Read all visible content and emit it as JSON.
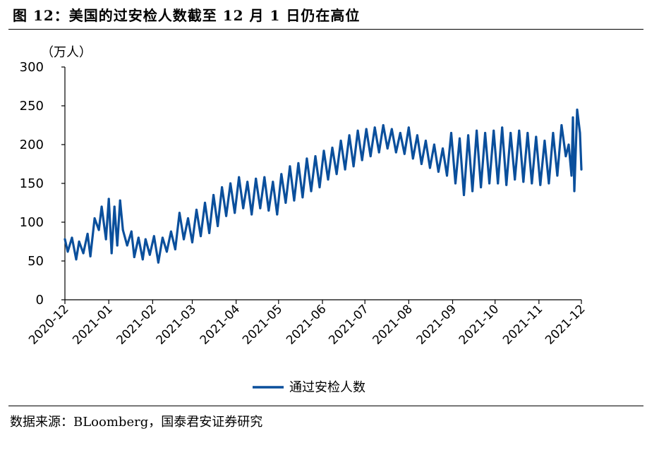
{
  "header": {
    "title": "图 12：美国的过安检人数截至 12 月 1 日仍在高位"
  },
  "footer": {
    "source": "数据来源：BLoomberg，国泰君安证券研究"
  },
  "colors": {
    "series": "#0a4f9c",
    "axis": "#000000"
  },
  "chart_data": {
    "type": "line",
    "title": "",
    "ylabel": "（万人）",
    "xlabel": "",
    "ylim": [
      0,
      300
    ],
    "yticks": [
      0,
      50,
      100,
      150,
      200,
      250,
      300
    ],
    "xlim": [
      "2020-12-01",
      "2021-12-01"
    ],
    "xticks": [
      "2020-12",
      "2021-01",
      "2021-02",
      "2021-03",
      "2021-04",
      "2021-05",
      "2021-06",
      "2021-07",
      "2021-08",
      "2021-09",
      "2021-10",
      "2021-11",
      "2021-12"
    ],
    "grid": false,
    "legend": "bottom-center",
    "series": [
      {
        "name": "通过安检人数",
        "x": [
          "2020-12-01",
          "2020-12-03",
          "2020-12-06",
          "2020-12-09",
          "2020-12-11",
          "2020-12-14",
          "2020-12-17",
          "2020-12-19",
          "2020-12-22",
          "2020-12-25",
          "2020-12-27",
          "2020-12-30",
          "2021-01-01",
          "2021-01-03",
          "2021-01-05",
          "2021-01-07",
          "2021-01-09",
          "2021-01-11",
          "2021-01-14",
          "2021-01-17",
          "2021-01-19",
          "2021-01-22",
          "2021-01-25",
          "2021-01-27",
          "2021-01-30",
          "2021-02-02",
          "2021-02-05",
          "2021-02-08",
          "2021-02-11",
          "2021-02-14",
          "2021-02-17",
          "2021-02-20",
          "2021-02-23",
          "2021-02-26",
          "2021-03-01",
          "2021-03-04",
          "2021-03-07",
          "2021-03-10",
          "2021-03-13",
          "2021-03-16",
          "2021-03-19",
          "2021-03-22",
          "2021-03-25",
          "2021-03-28",
          "2021-03-31",
          "2021-04-03",
          "2021-04-06",
          "2021-04-09",
          "2021-04-12",
          "2021-04-15",
          "2021-04-18",
          "2021-04-21",
          "2021-04-24",
          "2021-04-27",
          "2021-04-30",
          "2021-05-03",
          "2021-05-06",
          "2021-05-09",
          "2021-05-12",
          "2021-05-15",
          "2021-05-18",
          "2021-05-21",
          "2021-05-24",
          "2021-05-27",
          "2021-05-30",
          "2021-06-02",
          "2021-06-05",
          "2021-06-08",
          "2021-06-11",
          "2021-06-14",
          "2021-06-17",
          "2021-06-20",
          "2021-06-23",
          "2021-06-26",
          "2021-06-29",
          "2021-07-02",
          "2021-07-05",
          "2021-07-08",
          "2021-07-11",
          "2021-07-14",
          "2021-07-17",
          "2021-07-20",
          "2021-07-23",
          "2021-07-26",
          "2021-07-29",
          "2021-08-01",
          "2021-08-04",
          "2021-08-07",
          "2021-08-10",
          "2021-08-13",
          "2021-08-16",
          "2021-08-19",
          "2021-08-22",
          "2021-08-25",
          "2021-08-28",
          "2021-08-31",
          "2021-09-03",
          "2021-09-06",
          "2021-09-09",
          "2021-09-12",
          "2021-09-15",
          "2021-09-18",
          "2021-09-21",
          "2021-09-24",
          "2021-09-27",
          "2021-09-30",
          "2021-10-03",
          "2021-10-06",
          "2021-10-09",
          "2021-10-12",
          "2021-10-15",
          "2021-10-18",
          "2021-10-21",
          "2021-10-24",
          "2021-10-27",
          "2021-10-30",
          "2021-11-02",
          "2021-11-05",
          "2021-11-08",
          "2021-11-11",
          "2021-11-14",
          "2021-11-17",
          "2021-11-20",
          "2021-11-22",
          "2021-11-24",
          "2021-11-25",
          "2021-11-26",
          "2021-11-28",
          "2021-11-30",
          "2021-12-01"
        ],
        "values": [
          78,
          62,
          80,
          52,
          75,
          60,
          85,
          56,
          105,
          90,
          120,
          78,
          130,
          60,
          120,
          70,
          128,
          90,
          70,
          88,
          55,
          80,
          52,
          78,
          58,
          82,
          48,
          80,
          62,
          88,
          65,
          112,
          78,
          105,
          74,
          116,
          82,
          125,
          86,
          135,
          95,
          145,
          108,
          150,
          112,
          158,
          118,
          152,
          110,
          156,
          118,
          158,
          115,
          152,
          110,
          162,
          125,
          172,
          128,
          176,
          132,
          182,
          140,
          185,
          145,
          192,
          155,
          196,
          162,
          205,
          168,
          212,
          172,
          218,
          180,
          220,
          185,
          222,
          190,
          225,
          195,
          220,
          190,
          215,
          188,
          222,
          182,
          212,
          175,
          205,
          170,
          200,
          165,
          195,
          160,
          215,
          150,
          208,
          135,
          212,
          140,
          218,
          145,
          215,
          150,
          218,
          150,
          222,
          148,
          215,
          155,
          218,
          152,
          215,
          150,
          210,
          148,
          205,
          150,
          215,
          160,
          225,
          185,
          200,
          160,
          235,
          140,
          245,
          215,
          168
        ]
      }
    ]
  }
}
